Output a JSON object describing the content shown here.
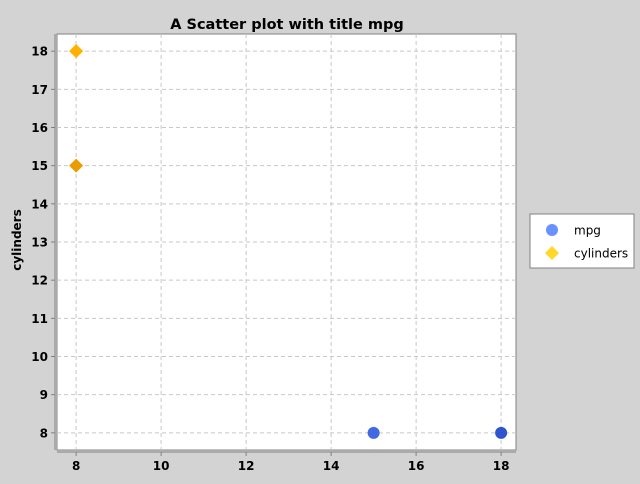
{
  "chart_data": {
    "type": "scatter",
    "title": "A Scatter plot with title mpg",
    "xlabel": "",
    "ylabel": "cylinders",
    "xlim": [
      7.55,
      18.35
    ],
    "ylim": [
      7.55,
      18.45
    ],
    "xticks": [
      8,
      10,
      12,
      14,
      16,
      18
    ],
    "yticks": [
      8,
      9,
      10,
      11,
      12,
      13,
      14,
      15,
      16,
      17,
      18
    ],
    "grid": true,
    "legend_position": "right",
    "series": [
      {
        "name": "mpg",
        "marker": "circle",
        "color": "#4169e1",
        "points": [
          {
            "x": 15,
            "y": 8
          },
          {
            "x": 18,
            "y": 8
          }
        ]
      },
      {
        "name": "cylinders",
        "marker": "diamond",
        "color": "#ffb000",
        "points": [
          {
            "x": 8,
            "y": 18
          },
          {
            "x": 8,
            "y": 15
          }
        ]
      }
    ]
  }
}
